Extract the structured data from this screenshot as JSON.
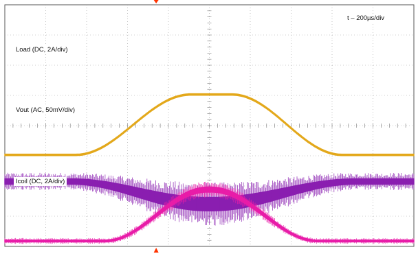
{
  "chart_data": {
    "type": "line",
    "timebase_label": "t – 200µs/div",
    "grid": true,
    "divisions": {
      "x": 10,
      "y": 8
    },
    "trigger_marker_color": "#ff3300",
    "series": [
      {
        "name": "Load (DC, 2A/div)",
        "color": "#e3a81b",
        "baseline_div": 3.03,
        "peak_div": 5.03,
        "rise": [
          1.73,
          4.55
        ],
        "fall": [
          5.55,
          8.25
        ],
        "band_div": 0.05,
        "peak_band_div": 0.05,
        "noise": false
      },
      {
        "name": "Vout (AC, 50mV/div)",
        "color": "#8a1fb0",
        "baseline_div": 2.15,
        "peak_div": 1.4,
        "rise": [
          1.6,
          4.95
        ],
        "fall": [
          5.05,
          8.6
        ],
        "band_div": 0.18,
        "peak_band_div": 0.45,
        "noise": true
      },
      {
        "name": "Icoil (DC, 2A/div)",
        "color": "#e81ca8",
        "baseline_div": 0.18,
        "peak_div": 1.88,
        "rise": [
          2.45,
          4.95
        ],
        "fall": [
          5.05,
          7.65
        ],
        "band_div": 0.06,
        "peak_band_div": 0.17,
        "noise": true
      }
    ]
  }
}
